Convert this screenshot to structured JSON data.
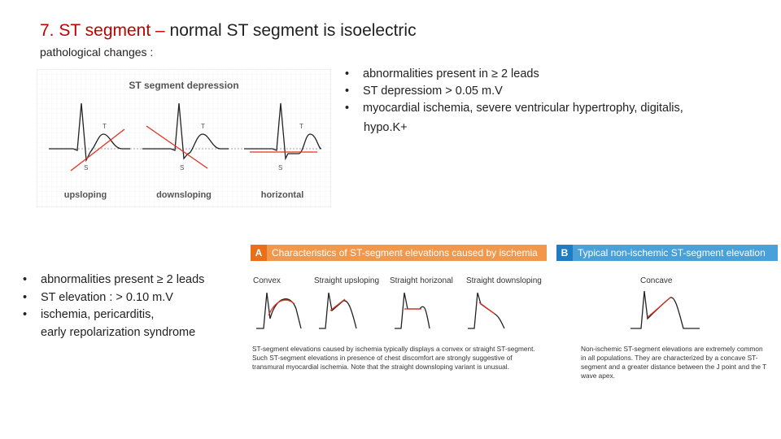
{
  "slide": {
    "title_red": "7. ST segment –",
    "title_rest": " normal ST segment is isoelectric",
    "subtitle": "pathological changes :",
    "depression_bullets": [
      "abnormalities present in ≥ 2 leads",
      "ST depressiom > 0.05 m.V",
      "myocardial ischemia, severe ventricular hypertrophy, digitalis,",
      "hypo.K+"
    ],
    "elevation_bullets": [
      "abnormalities present  ≥ 2 leads",
      "ST elevation : > 0.10 m.V",
      "ischemia, pericarditis,",
      "early repolarization syndrome"
    ]
  },
  "depression_figure": {
    "title": "ST segment depression",
    "t_label": "T",
    "s_label": "S",
    "labels": [
      "upsloping",
      "downsloping",
      "horizontal"
    ],
    "line_color": "#e03020"
  },
  "panel_a": {
    "letter": "A",
    "header": "Characteristics of ST-segment elevations caused by ischemia",
    "labels": [
      "Convex",
      "Straight upsloping",
      "Straight horizonal",
      "Straight downsloping"
    ],
    "caption": "ST-segment elevations caused by ischemia typically displays a convex or straight ST-segment. Such ST-segment elevations in presence of chest discomfort are strongly suggestive of transmural myocardial ischemia. Note that the straight downsloping variant is unusual.",
    "header_color": "#f2984c"
  },
  "panel_b": {
    "letter": "B",
    "header": "Typical non-ischemic ST-segment elevation",
    "label": "Concave",
    "caption": "Non-ischemic ST-segment elevations are extremely common in all populations. They are characterized by a concave ST-segment and a greater distance between the J point and the T wave apex.",
    "header_color": "#4aa0d8"
  }
}
